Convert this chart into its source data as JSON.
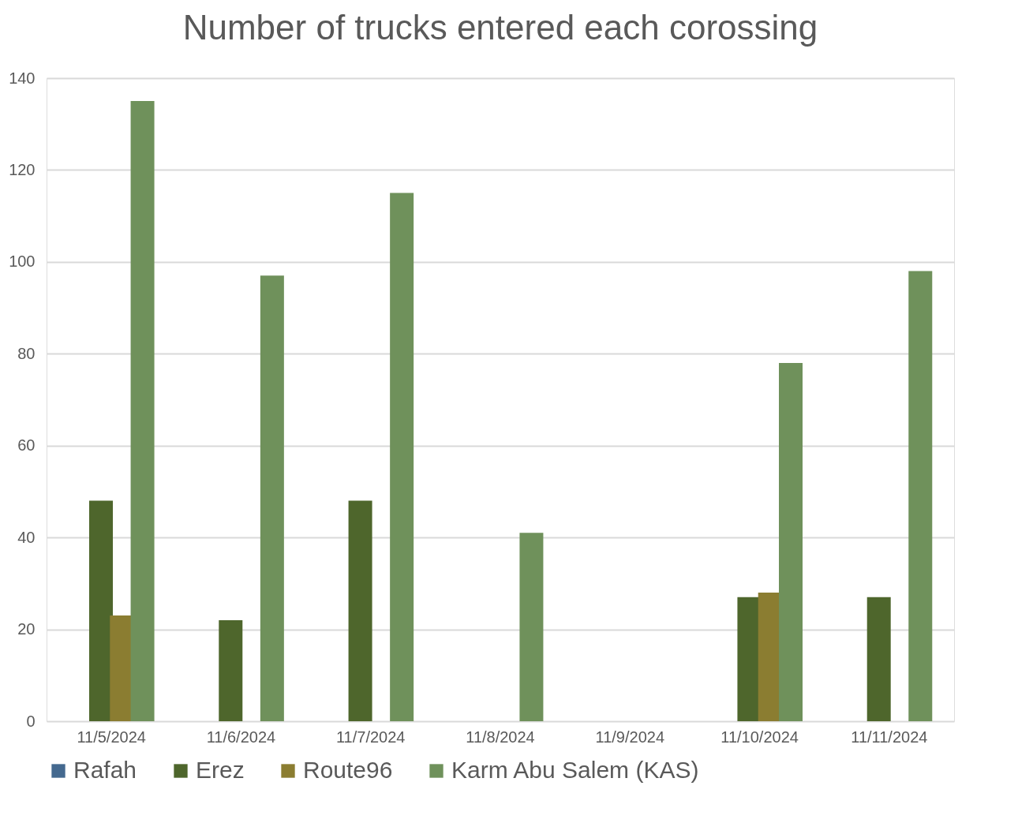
{
  "chart_data": {
    "type": "bar",
    "title": "Number of trucks entered each corossing",
    "categories": [
      "11/5/2024",
      "11/6/2024",
      "11/7/2024",
      "11/8/2024",
      "11/9/2024",
      "11/10/2024",
      "11/11/2024"
    ],
    "series": [
      {
        "name": "Rafah",
        "color": "#44698f",
        "values": [
          0,
          0,
          0,
          0,
          0,
          0,
          0
        ]
      },
      {
        "name": "Erez",
        "color": "#4e662c",
        "values": [
          48,
          22,
          48,
          0,
          0,
          27,
          27
        ]
      },
      {
        "name": "Route96",
        "color": "#8b7d31",
        "values": [
          23,
          0,
          0,
          0,
          0,
          28,
          0
        ]
      },
      {
        "name": "Karm Abu Salem (KAS)",
        "color": "#6f915b",
        "values": [
          135,
          97,
          115,
          41,
          0,
          78,
          98
        ]
      }
    ],
    "ylim": [
      0,
      140
    ],
    "yticks": [
      0,
      20,
      40,
      60,
      80,
      100,
      120,
      140
    ],
    "grid": "y",
    "legend": "bottom"
  }
}
